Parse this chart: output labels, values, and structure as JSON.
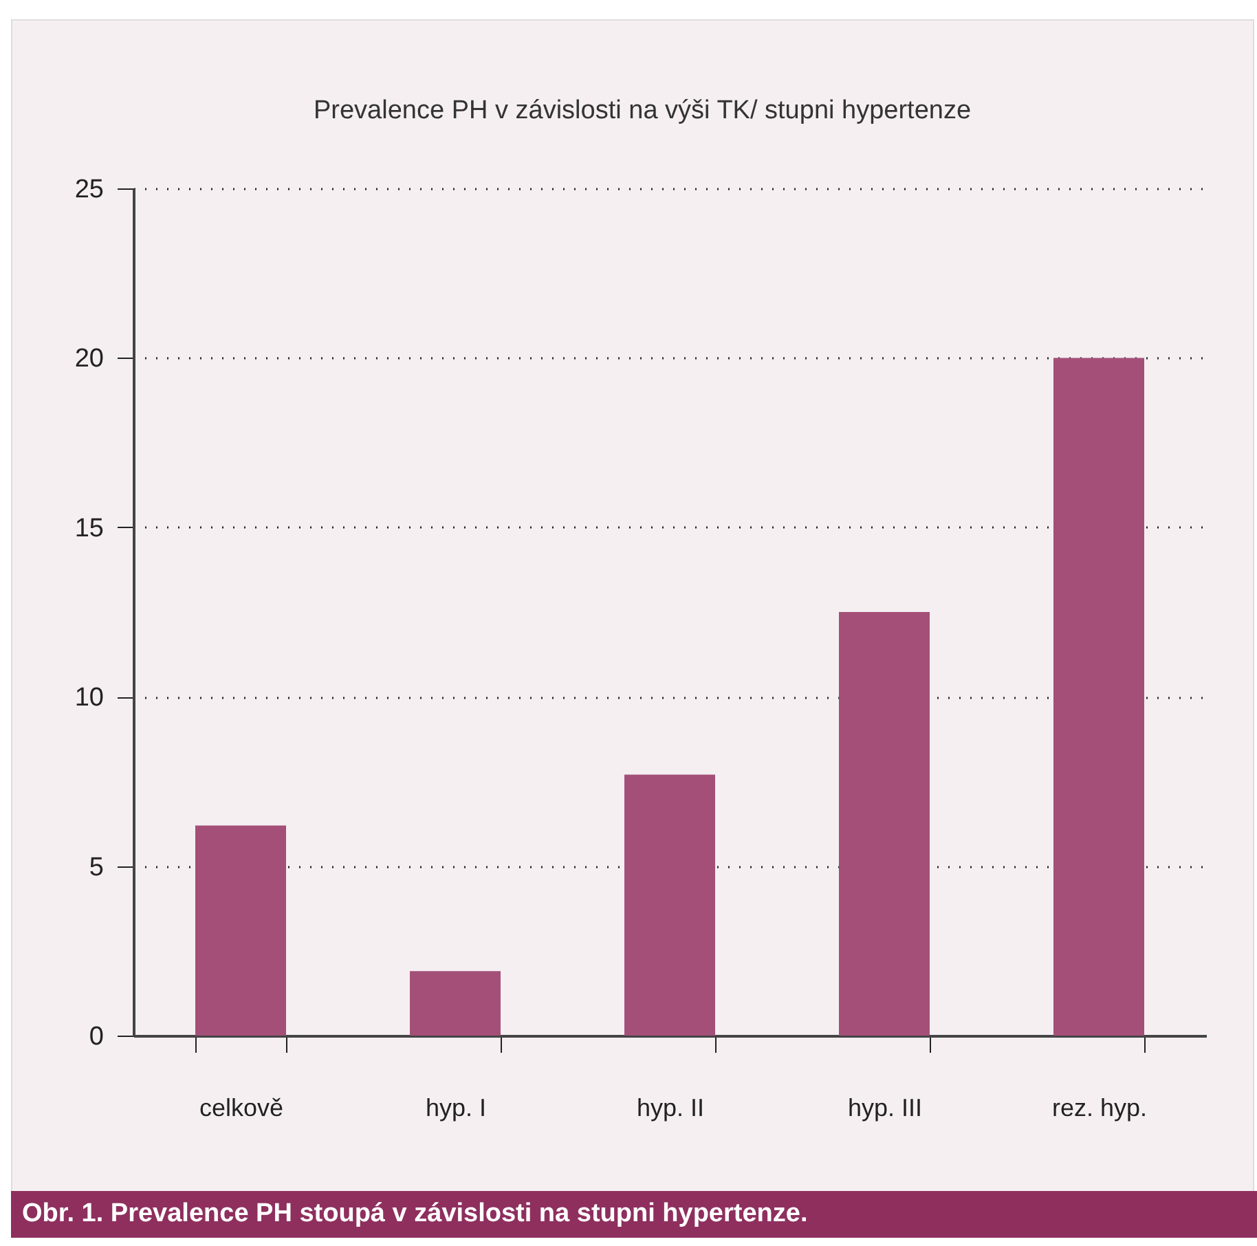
{
  "chart_data": {
    "type": "bar",
    "title": "Prevalence PH v závislosti na výši TK/ stupni hypertenze",
    "categories": [
      "celkově",
      "hyp. I",
      "hyp. II",
      "hyp. III",
      "rez. hyp."
    ],
    "values": [
      6.2,
      1.9,
      7.7,
      12.5,
      20
    ],
    "color": "#a34f78",
    "ylim": [
      0,
      25
    ],
    "yticks": [
      0,
      5,
      10,
      15,
      20,
      25
    ],
    "grid": "y",
    "annotations": [
      "Obr. 1. Prevalence PH stoupá v závislosti na stupni hypertenze."
    ]
  }
}
